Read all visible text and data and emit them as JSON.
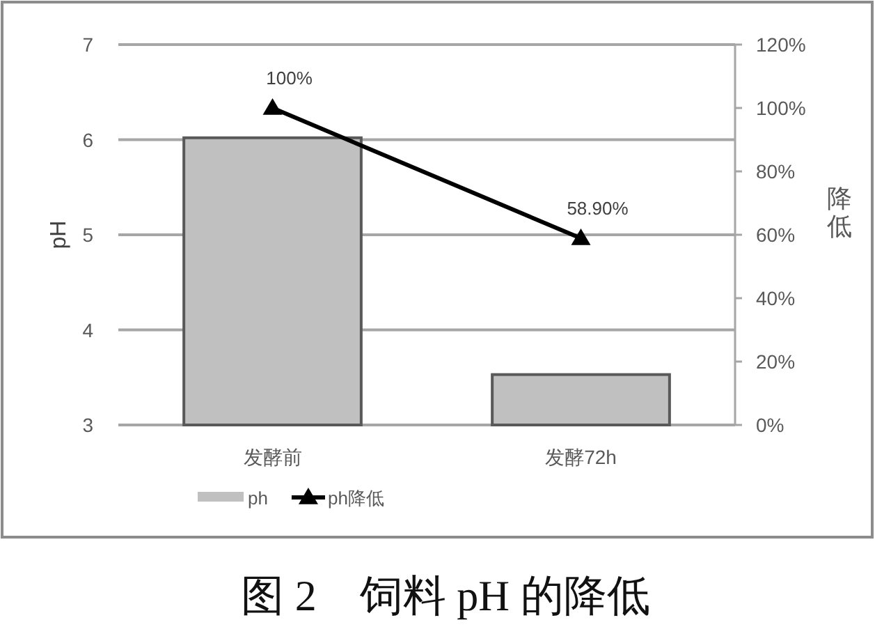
{
  "chart_data": {
    "type": "bar",
    "categories": [
      "发酵前",
      "发酵72h"
    ],
    "ylabel": "pH",
    "y2label": "降低",
    "ylim": [
      3,
      7
    ],
    "yticks": [
      3,
      4,
      5,
      6,
      7
    ],
    "y2lim": [
      0,
      120
    ],
    "y2ticks": [
      {
        "value": 0,
        "label": "0%"
      },
      {
        "value": 20,
        "label": "20%"
      },
      {
        "value": 40,
        "label": "40%"
      },
      {
        "value": 60,
        "label": "60%"
      },
      {
        "value": 80,
        "label": "80%"
      },
      {
        "value": 100,
        "label": "100%"
      },
      {
        "value": 120,
        "label": "120%"
      }
    ],
    "series": [
      {
        "name": "ph",
        "color": "#c0c0c0",
        "values": [
          6.02,
          3.53
        ]
      },
      {
        "name": "ph降低",
        "type": "line",
        "axis": "y2",
        "color": "#000000",
        "values": [
          100,
          58.9
        ],
        "value_labels": [
          "100%",
          "58.90%"
        ]
      }
    ],
    "marker": "triangle",
    "grid": "y",
    "legend": "bottom",
    "annotations": [
      "图 2　饲料 pH 的降低"
    ]
  }
}
